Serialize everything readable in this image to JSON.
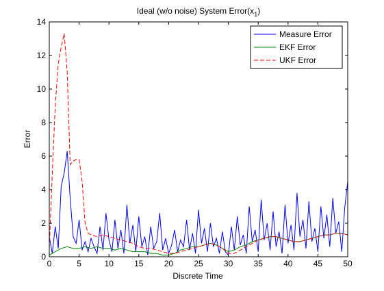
{
  "chart_data": {
    "type": "line",
    "title_main": "Ideal (w/o noise) System Error(x",
    "title_sub": "1",
    "title_end": ")",
    "xlabel": "Discrete Time",
    "ylabel": "Error",
    "xlim": [
      0,
      50
    ],
    "ylim": [
      0,
      14
    ],
    "x_ticks": [
      0,
      5,
      10,
      15,
      20,
      25,
      30,
      35,
      40,
      45,
      50
    ],
    "y_ticks": [
      0,
      2,
      4,
      6,
      8,
      10,
      12,
      14
    ],
    "grid": false,
    "legend_position": "top-right",
    "series": [
      {
        "name": "Measure Error",
        "color": "#0000ff",
        "style": "solid",
        "x": [
          0.0,
          0.5,
          1.0,
          1.5,
          2.0,
          2.5,
          3.0,
          3.5,
          4.0,
          4.5,
          5.0,
          5.5,
          6.0,
          6.5,
          7.0,
          7.5,
          8.0,
          8.5,
          9.0,
          9.5,
          10.0,
          10.5,
          11.0,
          11.5,
          12.0,
          12.5,
          13.0,
          13.5,
          14.0,
          14.5,
          15.0,
          15.5,
          16.0,
          16.5,
          17.0,
          17.5,
          18.0,
          18.5,
          19.0,
          19.5,
          20.0,
          20.5,
          21.0,
          21.5,
          22.0,
          22.5,
          23.0,
          23.5,
          24.0,
          24.5,
          25.0,
          25.5,
          26.0,
          26.5,
          27.0,
          27.5,
          28.0,
          28.5,
          29.0,
          29.5,
          30.0,
          30.5,
          31.0,
          31.5,
          32.0,
          32.5,
          33.0,
          33.5,
          34.0,
          34.5,
          35.0,
          35.5,
          36.0,
          36.5,
          37.0,
          37.5,
          38.0,
          38.5,
          39.0,
          39.5,
          40.0,
          40.5,
          41.0,
          41.5,
          42.0,
          42.5,
          43.0,
          43.5,
          44.0,
          44.5,
          45.0,
          45.5,
          46.0,
          46.5,
          47.0,
          47.5,
          48.0,
          48.5,
          49.0,
          49.5,
          50.0
        ],
        "values": [
          1.2,
          0.2,
          1.8,
          0.5,
          4.2,
          5.0,
          6.3,
          3.5,
          1.2,
          0.8,
          2.2,
          0.4,
          0.9,
          0.3,
          1.1,
          0.6,
          0.2,
          1.8,
          0.4,
          2.6,
          1.0,
          0.3,
          2.2,
          0.5,
          1.6,
          0.2,
          3.1,
          0.8,
          1.9,
          0.3,
          2.4,
          0.6,
          1.2,
          0.1,
          1.8,
          0.5,
          0.9,
          2.6,
          0.4,
          1.1,
          0.2,
          0.7,
          1.6,
          0.3,
          1.0,
          0.6,
          2.2,
          0.4,
          1.4,
          0.2,
          2.8,
          0.8,
          1.7,
          0.3,
          2.0,
          0.6,
          1.1,
          0.2,
          1.5,
          0.3,
          0.1,
          1.8,
          0.4,
          2.4,
          0.7,
          1.3,
          0.2,
          3.0,
          0.9,
          1.6,
          0.3,
          3.4,
          1.0,
          2.0,
          0.4,
          2.7,
          0.6,
          1.5,
          0.2,
          3.1,
          0.8,
          1.9,
          0.4,
          3.8,
          1.2,
          2.2,
          0.5,
          3.3,
          0.9,
          1.7,
          0.3,
          3.0,
          1.1,
          2.5,
          0.6,
          3.5,
          1.4,
          2.1,
          0.3,
          2.9,
          4.5
        ]
      },
      {
        "name": "EKF Error",
        "color": "#008000",
        "style": "solid",
        "x": [
          0,
          1,
          2,
          3,
          4,
          5,
          6,
          7,
          8,
          9,
          10,
          11,
          12,
          13,
          14,
          15,
          16,
          17,
          18,
          19,
          20,
          21,
          22,
          23,
          24,
          25,
          26,
          27,
          28,
          29,
          30,
          31,
          32,
          33,
          34,
          35,
          36,
          37,
          38,
          39,
          40,
          41,
          42,
          43,
          44,
          45,
          46,
          47,
          48,
          49,
          50
        ],
        "values": [
          0.1,
          0.3,
          0.5,
          0.6,
          0.5,
          0.5,
          0.6,
          0.5,
          0.6,
          0.5,
          0.5,
          0.4,
          0.5,
          0.4,
          0.3,
          0.3,
          0.3,
          0.2,
          0.2,
          0.1,
          0.1,
          0.2,
          0.4,
          0.5,
          0.6,
          0.6,
          0.7,
          0.8,
          0.7,
          0.5,
          0.3,
          0.4,
          0.6,
          0.7,
          0.9,
          1.0,
          1.1,
          1.2,
          1.2,
          1.1,
          1.0,
          0.9,
          0.9,
          1.0,
          1.1,
          1.2,
          1.3,
          1.3,
          1.4,
          1.4,
          1.3
        ]
      },
      {
        "name": "UKF Error",
        "color": "#ff0000",
        "style": "dashed",
        "x": [
          0,
          0.5,
          1,
          1.5,
          2,
          2.5,
          3,
          3.5,
          4,
          4.5,
          5,
          5.5,
          6,
          6.5,
          7,
          8,
          9,
          10,
          11,
          12,
          13,
          14,
          15,
          16,
          17,
          18,
          19,
          20,
          21,
          22,
          23,
          24,
          25,
          26,
          27,
          28,
          29,
          30,
          31,
          32,
          33,
          34,
          35,
          36,
          37,
          38,
          39,
          40,
          41,
          42,
          43,
          44,
          45,
          46,
          47,
          48,
          49,
          50
        ],
        "values": [
          0.5,
          5.0,
          9.0,
          11.5,
          12.5,
          13.3,
          11.0,
          5.5,
          5.7,
          5.8,
          5.8,
          4.5,
          2.0,
          1.4,
          1.3,
          1.2,
          1.3,
          1.2,
          1.1,
          1.0,
          0.9,
          0.8,
          0.6,
          0.5,
          0.5,
          0.4,
          0.3,
          0.2,
          0.2,
          0.3,
          0.4,
          0.5,
          0.6,
          0.7,
          0.8,
          0.7,
          0.5,
          0.2,
          0.2,
          0.4,
          0.6,
          0.8,
          1.0,
          1.1,
          1.2,
          1.2,
          1.1,
          1.0,
          0.9,
          0.9,
          1.0,
          1.1,
          1.2,
          1.3,
          1.3,
          1.4,
          1.4,
          1.3
        ]
      }
    ]
  }
}
